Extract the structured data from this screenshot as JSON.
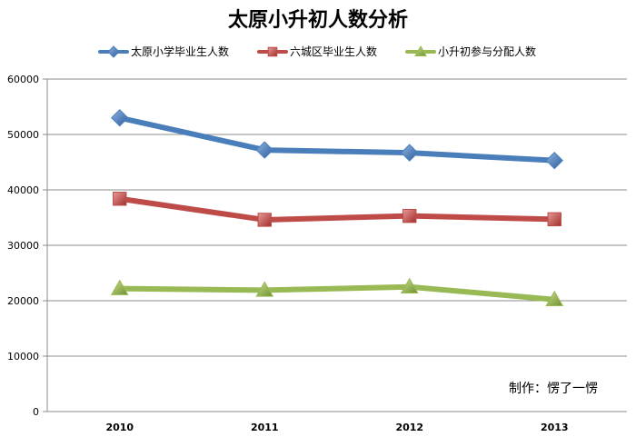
{
  "chart_data": {
    "type": "line",
    "title": "太原小升初人数分析",
    "xlabel": "",
    "ylabel": "",
    "categories": [
      "2010",
      "2011",
      "2012",
      "2013"
    ],
    "ylim": [
      0,
      60000
    ],
    "yticks": [
      0,
      10000,
      20000,
      30000,
      40000,
      50000,
      60000
    ],
    "grid": true,
    "legend_position": "top",
    "series": [
      {
        "name": "太原小学毕业生人数",
        "values": [
          53000,
          47200,
          46700,
          45300
        ],
        "color": "#4a7ebb",
        "marker": "diamond"
      },
      {
        "name": "六城区毕业生人数",
        "values": [
          38400,
          34600,
          35300,
          34700
        ],
        "color": "#be4b48",
        "marker": "square"
      },
      {
        "name": "小升初参与分配人数",
        "values": [
          22200,
          21900,
          22500,
          20200
        ],
        "color": "#98b954",
        "marker": "triangle"
      }
    ],
    "annotation": "制作：愣了一愣"
  }
}
